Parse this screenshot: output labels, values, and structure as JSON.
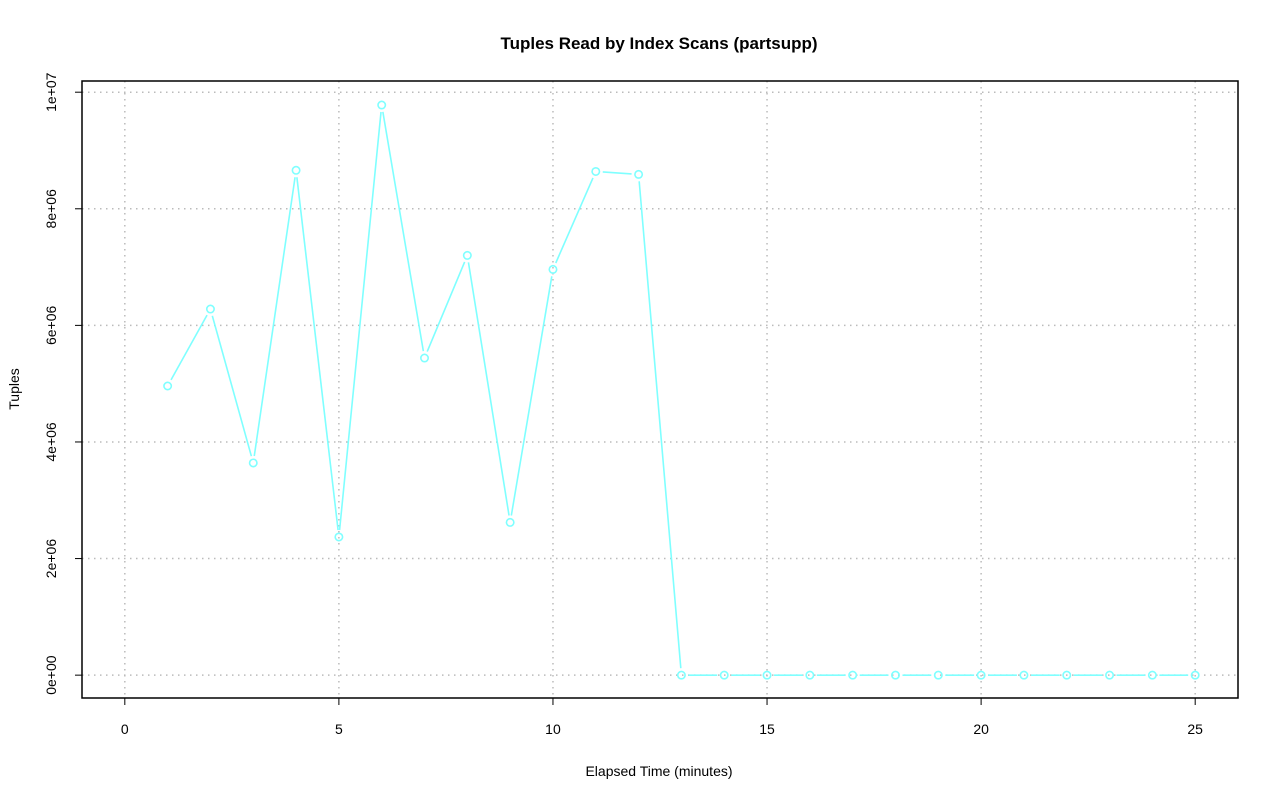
{
  "chart_data": {
    "type": "line",
    "title": "Tuples Read by Index Scans (partsupp)",
    "xlabel": "Elapsed Time (minutes)",
    "ylabel": "Tuples",
    "xlim": [
      0,
      25
    ],
    "ylim": [
      0,
      9800000
    ],
    "x_ticks": [
      0,
      5,
      10,
      15,
      20,
      25
    ],
    "x_tick_labels": [
      "0",
      "5",
      "10",
      "15",
      "20",
      "25"
    ],
    "y_ticks": [
      0,
      2000000,
      4000000,
      6000000,
      8000000,
      10000000
    ],
    "y_tick_labels": [
      "0e+00",
      "2e+06",
      "4e+06",
      "6e+06",
      "8e+06",
      "1e+07"
    ],
    "grid": true,
    "markers": "open-circle",
    "color": "#7fffff",
    "x": [
      1,
      2,
      3,
      4,
      5,
      6,
      7,
      8,
      9,
      10,
      11,
      12,
      13,
      14,
      15,
      16,
      17,
      18,
      19,
      20,
      21,
      22,
      23,
      24,
      25
    ],
    "values": [
      4960000,
      6280000,
      3640000,
      8660000,
      2370000,
      9780000,
      5440000,
      7200000,
      2620000,
      6960000,
      8640000,
      8590000,
      0,
      0,
      0,
      0,
      0,
      0,
      0,
      0,
      0,
      0,
      0,
      0,
      0
    ]
  }
}
